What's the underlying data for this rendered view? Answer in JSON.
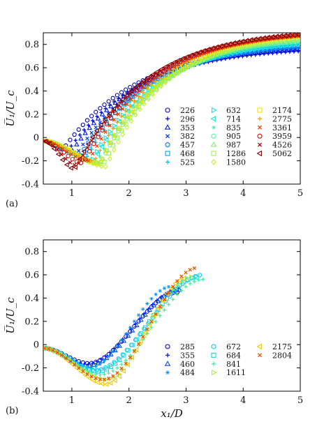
{
  "chart_data": [
    {
      "type": "scatter",
      "panel_label": "(a)",
      "xlabel": "",
      "ylabel": "U̅₁/U_c",
      "xlim": [
        0.5,
        5
      ],
      "ylim": [
        -0.4,
        0.9
      ],
      "xticks": [
        "1",
        "2",
        "3",
        "4",
        "5"
      ],
      "yticks": [
        "-0.4",
        "-0.2",
        "0",
        "0.2",
        "0.4",
        "0.6",
        "0.8"
      ],
      "legend_position": "inside-lower-right",
      "series": [
        {
          "name": "226",
          "marker": "circle",
          "color": "#0000a8",
          "min_x": 0.85,
          "min_y": -0.1,
          "end_y": 0.76
        },
        {
          "name": "296",
          "marker": "plus",
          "color": "#0000c8",
          "min_x": 0.95,
          "min_y": -0.1,
          "end_y": 0.74
        },
        {
          "name": "353",
          "marker": "triangle-up",
          "color": "#0018e0",
          "min_x": 1.0,
          "min_y": -0.12,
          "end_y": 0.76
        },
        {
          "name": "382",
          "marker": "cross",
          "color": "#0040f0",
          "min_x": 1.1,
          "min_y": -0.13,
          "end_y": 0.77
        },
        {
          "name": "457",
          "marker": "circle",
          "color": "#0078f8",
          "min_x": 1.15,
          "min_y": -0.15,
          "end_y": 0.78
        },
        {
          "name": "468",
          "marker": "square",
          "color": "#00a0ff",
          "min_x": 1.2,
          "min_y": -0.16,
          "end_y": 0.79
        },
        {
          "name": "525",
          "marker": "plus",
          "color": "#00c0f0",
          "min_x": 1.25,
          "min_y": -0.18,
          "end_y": 0.8
        },
        {
          "name": "632",
          "marker": "triangle-right",
          "color": "#10e0e8",
          "min_x": 1.35,
          "min_y": -0.2,
          "end_y": 0.8
        },
        {
          "name": "714",
          "marker": "triangle-left",
          "color": "#20e8c8",
          "min_x": 1.4,
          "min_y": -0.2,
          "end_y": 0.81
        },
        {
          "name": "835",
          "marker": "asterisk",
          "color": "#40f0b0",
          "min_x": 1.45,
          "min_y": -0.21,
          "end_y": 0.82
        },
        {
          "name": "905",
          "marker": "circle",
          "color": "#60f090",
          "min_x": 1.5,
          "min_y": -0.22,
          "end_y": 0.83
        },
        {
          "name": "987",
          "marker": "triangle-up",
          "color": "#80f070",
          "min_x": 1.5,
          "min_y": -0.22,
          "end_y": 0.84
        },
        {
          "name": "1286",
          "marker": "square",
          "color": "#a0f050",
          "min_x": 1.55,
          "min_y": -0.23,
          "end_y": 0.85
        },
        {
          "name": "1580",
          "marker": "diamond",
          "color": "#c8f030",
          "min_x": 1.6,
          "min_y": -0.25,
          "end_y": 0.86
        },
        {
          "name": "2174",
          "marker": "square",
          "color": "#f0e000",
          "min_x": 1.5,
          "min_y": -0.22,
          "end_y": 0.87
        },
        {
          "name": "2775",
          "marker": "plus",
          "color": "#f8a000",
          "min_x": 1.4,
          "min_y": -0.2,
          "end_y": 0.87
        },
        {
          "name": "3361",
          "marker": "cross",
          "color": "#f04000",
          "min_x": 1.3,
          "min_y": -0.2,
          "end_y": 0.87
        },
        {
          "name": "3959",
          "marker": "circle",
          "color": "#d01000",
          "min_x": 1.2,
          "min_y": -0.22,
          "end_y": 0.88
        },
        {
          "name": "4526",
          "marker": "cross",
          "color": "#b00000",
          "min_x": 1.1,
          "min_y": -0.24,
          "end_y": 0.88
        },
        {
          "name": "5062",
          "marker": "triangle-left",
          "color": "#800000",
          "min_x": 1.05,
          "min_y": -0.27,
          "end_y": 0.89
        }
      ]
    },
    {
      "type": "scatter",
      "panel_label": "(b)",
      "xlabel": "x₁/D",
      "ylabel": "U̅₁/U_c",
      "xlim": [
        0.5,
        5
      ],
      "ylim": [
        -0.4,
        0.9
      ],
      "xticks": [
        "1",
        "2",
        "3",
        "4",
        "5"
      ],
      "yticks": [
        "-0.4",
        "-0.2",
        "0",
        "0.2",
        "0.4",
        "0.6",
        "0.8"
      ],
      "legend_position": "inside-lower-right",
      "series": [
        {
          "name": "285",
          "marker": "circle",
          "color": "#0000b0",
          "min_x": 1.3,
          "min_y": -0.16,
          "end_x": 2.85,
          "end_y": 0.45
        },
        {
          "name": "355",
          "marker": "plus",
          "color": "#0010d8",
          "min_x": 1.25,
          "min_y": -0.17,
          "end_x": 2.9,
          "end_y": 0.48
        },
        {
          "name": "460",
          "marker": "triangle-up",
          "color": "#0048f0",
          "min_x": 1.3,
          "min_y": -0.18,
          "end_x": 2.9,
          "end_y": 0.47
        },
        {
          "name": "484",
          "marker": "asterisk",
          "color": "#0090ff",
          "min_x": 1.3,
          "min_y": -0.2,
          "end_x": 2.75,
          "end_y": 0.5
        },
        {
          "name": "672",
          "marker": "circle",
          "color": "#00c8f0",
          "min_x": 1.4,
          "min_y": -0.22,
          "end_x": 3.3,
          "end_y": 0.6
        },
        {
          "name": "684",
          "marker": "square",
          "color": "#10d8e0",
          "min_x": 1.45,
          "min_y": -0.23,
          "end_x": 3.2,
          "end_y": 0.58
        },
        {
          "name": "841",
          "marker": "plus",
          "color": "#40f0a0",
          "min_x": 1.5,
          "min_y": -0.26,
          "end_x": 3.3,
          "end_y": 0.56
        },
        {
          "name": "1611",
          "marker": "triangle-right",
          "color": "#a8f040",
          "min_x": 1.6,
          "min_y": -0.3,
          "end_x": 3.1,
          "end_y": 0.58
        },
        {
          "name": "2175",
          "marker": "triangle-left",
          "color": "#f0c800",
          "min_x": 1.6,
          "min_y": -0.34,
          "end_x": 3.0,
          "end_y": 0.57
        },
        {
          "name": "2804",
          "marker": "cross",
          "color": "#f05000",
          "min_x": 1.55,
          "min_y": -0.3,
          "end_x": 3.2,
          "end_y": 0.66
        }
      ]
    }
  ]
}
